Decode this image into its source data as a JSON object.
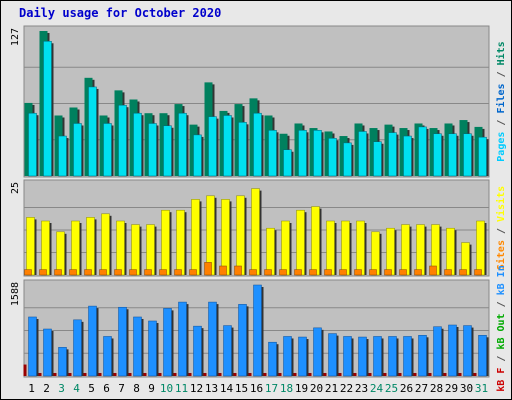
{
  "chart_data": {
    "title": "Daily usage for October 2020",
    "categories": [
      "1",
      "2",
      "3",
      "4",
      "5",
      "6",
      "7",
      "8",
      "9",
      "10",
      "11",
      "12",
      "13",
      "14",
      "15",
      "16",
      "17",
      "18",
      "19",
      "20",
      "21",
      "22",
      "23",
      "24",
      "25",
      "26",
      "27",
      "28",
      "29",
      "30",
      "31"
    ],
    "weekend_days": [
      "3",
      "4",
      "10",
      "11",
      "17",
      "18",
      "24",
      "25",
      "31"
    ],
    "panels": [
      {
        "name": "pages-files-hits",
        "type": "bar",
        "y_tick_label": "127",
        "ymax": 127,
        "axis_label_parts": [
          {
            "text": "Pages",
            "color": "#00ccff"
          },
          {
            "text": " / ",
            "color": "#555555"
          },
          {
            "text": "Files",
            "color": "#0066cc"
          },
          {
            "text": " / ",
            "color": "#555555"
          },
          {
            "text": "Hits",
            "color": "#008866"
          }
        ],
        "series": [
          {
            "name": "Hits",
            "color": "#00805e",
            "values": [
              64,
              127,
              53,
              60,
              86,
              53,
              75,
              67,
              55,
              55,
              63,
              45,
              82,
              57,
              63,
              68,
              53,
              37,
              46,
              42,
              39,
              35,
              46,
              42,
              45,
              42,
              46,
              42,
              46,
              49,
              43
            ]
          },
          {
            "name": "Pages",
            "color": "#00e0f0",
            "values": [
              55,
              118,
              35,
              46,
              78,
              46,
              62,
              55,
              46,
              44,
              55,
              36,
              52,
              53,
              47,
              55,
              40,
              23,
              40,
              40,
              33,
              29,
              39,
              30,
              38,
              35,
              43,
              37,
              37,
              37,
              34
            ]
          }
        ]
      },
      {
        "name": "visits-sites",
        "type": "bar",
        "y_tick_label": "25",
        "ymax": 25,
        "axis_label_parts": [
          {
            "text": "Sites",
            "color": "#ff8800"
          },
          {
            "text": " / ",
            "color": "#555555"
          },
          {
            "text": "Visits",
            "color": "#ffff00"
          }
        ],
        "series": [
          {
            "name": "Visits",
            "color": "#ffff00",
            "values": [
              16,
              15,
              12,
              15,
              16,
              17,
              15,
              14,
              14,
              18,
              18,
              21,
              22,
              21,
              22,
              24,
              13,
              15,
              18,
              19,
              15,
              15,
              15,
              12,
              13,
              14,
              14,
              14,
              13,
              9,
              15
            ]
          },
          {
            "name": "Sites",
            "color": "#ff8000",
            "values": [
              1.5,
              1.5,
              1.5,
              1.5,
              1.5,
              1.5,
              1.5,
              1.5,
              1.5,
              1.5,
              1.5,
              1.5,
              3.5,
              2.5,
              2.5,
              1.5,
              1.5,
              1.5,
              1.5,
              1.5,
              1.5,
              1.5,
              1.5,
              1.5,
              1.5,
              1.5,
              1.5,
              2.5,
              1.5,
              1.5,
              1.5
            ]
          }
        ]
      },
      {
        "name": "kb-in-out-f",
        "type": "bar",
        "y_tick_label": "1588",
        "ymax": 1588,
        "axis_label_parts": [
          {
            "text": "kB F",
            "color": "#cc0000"
          },
          {
            "text": " / ",
            "color": "#555555"
          },
          {
            "text": "kB Out",
            "color": "#00aa00"
          },
          {
            "text": " / ",
            "color": "#555555"
          },
          {
            "text": "kB In",
            "color": "#1e90ff"
          }
        ],
        "series": [
          {
            "name": "kB In",
            "color": "#1e90ff",
            "values": [
              1030,
              820,
              500,
              980,
              1220,
              690,
              1200,
              1030,
              960,
              1180,
              1290,
              870,
              1290,
              880,
              1250,
              1588,
              590,
              690,
              680,
              840,
              740,
              690,
              680,
              690,
              690,
              690,
              710,
              860,
              890,
              880,
              710
            ]
          },
          {
            "name": "kB F",
            "color": "#990000",
            "values": [
              200,
              40,
              40,
              40,
              40,
              40,
              40,
              40,
              40,
              40,
              40,
              40,
              40,
              40,
              40,
              40,
              40,
              40,
              40,
              40,
              40,
              40,
              40,
              40,
              40,
              40,
              40,
              40,
              40,
              40,
              40
            ]
          }
        ]
      }
    ]
  }
}
